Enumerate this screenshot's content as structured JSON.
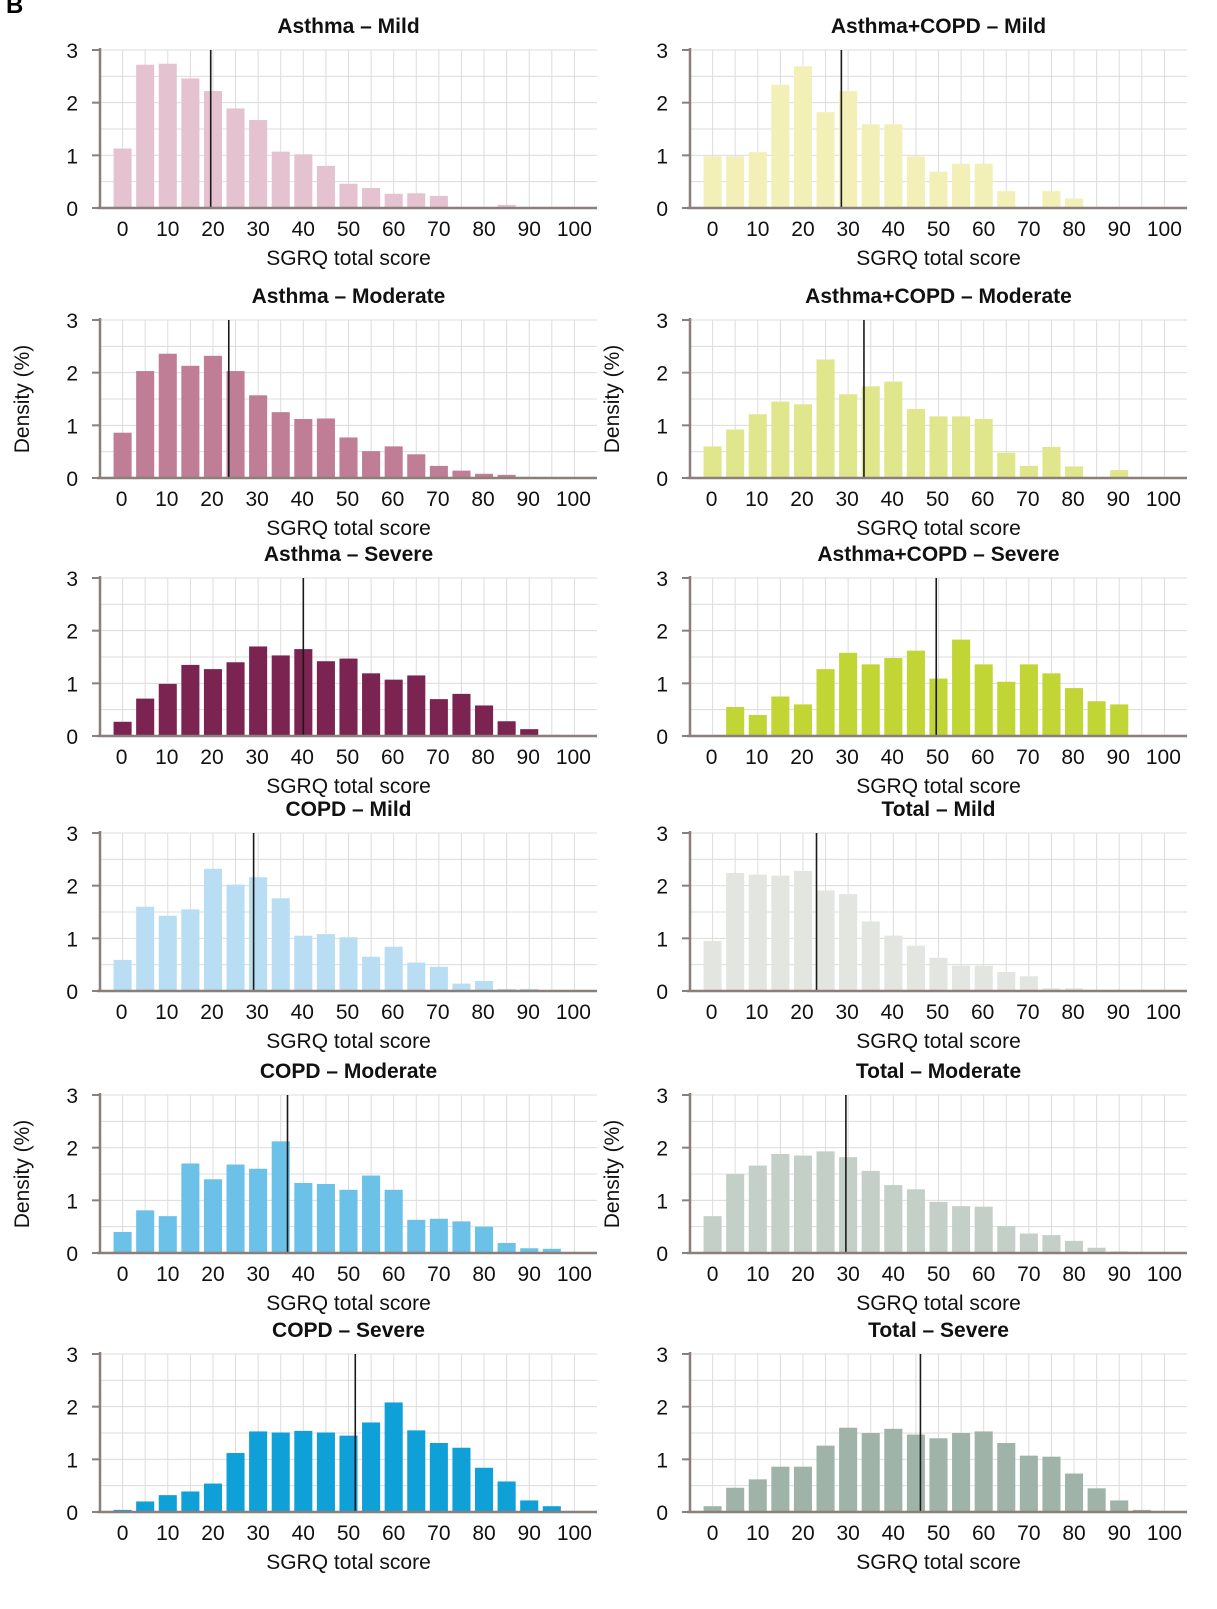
{
  "panel_label": "B",
  "chart_data": [
    {
      "type": "bar",
      "title": "Asthma – Mild",
      "xlabel": "SGRQ total score",
      "ylabel": "",
      "ylim": [
        0,
        3
      ],
      "xlim": [
        -5,
        105
      ],
      "xticks": [
        0,
        10,
        20,
        30,
        40,
        50,
        60,
        70,
        80,
        90,
        100
      ],
      "yticks": [
        0,
        1,
        2,
        3
      ],
      "grid": true,
      "bar_width": 4,
      "median": 19.5,
      "color": "#e5c2d0",
      "x": [
        0,
        5,
        10,
        15,
        20,
        25,
        30,
        35,
        40,
        45,
        50,
        55,
        60,
        65,
        70,
        75,
        80,
        85,
        90,
        95,
        100
      ],
      "values": [
        1.13,
        2.72,
        2.74,
        2.46,
        2.22,
        1.89,
        1.67,
        1.07,
        1.02,
        0.8,
        0.46,
        0.38,
        0.27,
        0.28,
        0.23,
        0.02,
        0.02,
        0.06,
        0.02,
        0,
        0
      ]
    },
    {
      "type": "bar",
      "title": "Asthma+COPD – Mild",
      "xlabel": "SGRQ total score",
      "ylabel": "",
      "ylim": [
        0,
        3
      ],
      "xlim": [
        -5,
        105
      ],
      "xticks": [
        0,
        10,
        20,
        30,
        40,
        50,
        60,
        70,
        80,
        90,
        100
      ],
      "yticks": [
        0,
        1,
        2,
        3
      ],
      "grid": true,
      "bar_width": 4,
      "median": 28.5,
      "color": "#f2f0b6",
      "x": [
        0,
        5,
        10,
        15,
        20,
        25,
        30,
        35,
        40,
        45,
        50,
        55,
        60,
        65,
        70,
        75,
        80,
        85,
        90,
        95,
        100
      ],
      "values": [
        0.98,
        0.98,
        1.06,
        2.34,
        2.69,
        1.82,
        2.22,
        1.59,
        1.59,
        0.98,
        0.69,
        0.84,
        0.84,
        0.32,
        0.02,
        0.32,
        0.18,
        0.02,
        0,
        0,
        0
      ]
    },
    {
      "type": "bar",
      "title": "Asthma – Moderate",
      "xlabel": "SGRQ total score",
      "ylabel": "Density (%)",
      "ylim": [
        0,
        3
      ],
      "xlim": [
        -5,
        105
      ],
      "xticks": [
        0,
        10,
        20,
        30,
        40,
        50,
        60,
        70,
        80,
        90,
        100
      ],
      "yticks": [
        0,
        1,
        2,
        3
      ],
      "grid": true,
      "bar_width": 4,
      "median": 23.5,
      "color": "#bf7d96",
      "x": [
        0,
        5,
        10,
        15,
        20,
        25,
        30,
        35,
        40,
        45,
        50,
        55,
        60,
        65,
        70,
        75,
        80,
        85,
        90,
        95,
        100
      ],
      "values": [
        0.86,
        2.03,
        2.36,
        2.13,
        2.32,
        2.03,
        1.57,
        1.25,
        1.12,
        1.13,
        0.77,
        0.51,
        0.6,
        0.45,
        0.23,
        0.14,
        0.08,
        0.06,
        0.02,
        0,
        0
      ]
    },
    {
      "type": "bar",
      "title": "Asthma+COPD – Moderate",
      "xlabel": "SGRQ total score",
      "ylabel": "Density (%)",
      "ylim": [
        0,
        3
      ],
      "xlim": [
        -5,
        105
      ],
      "xticks": [
        0,
        10,
        20,
        30,
        40,
        50,
        60,
        70,
        80,
        90,
        100
      ],
      "yticks": [
        0,
        1,
        2,
        3
      ],
      "grid": true,
      "bar_width": 4,
      "median": 33.5,
      "color": "#dfe68c",
      "x": [
        0,
        5,
        10,
        15,
        20,
        25,
        30,
        35,
        40,
        45,
        50,
        55,
        60,
        65,
        70,
        75,
        80,
        85,
        90,
        95,
        100
      ],
      "values": [
        0.6,
        0.92,
        1.21,
        1.45,
        1.4,
        2.25,
        1.59,
        1.74,
        1.83,
        1.31,
        1.17,
        1.17,
        1.12,
        0.48,
        0.23,
        0.59,
        0.22,
        0.02,
        0.15,
        0,
        0
      ]
    },
    {
      "type": "bar",
      "title": "Asthma – Severe",
      "xlabel": "SGRQ total score",
      "ylabel": "",
      "ylim": [
        0,
        3
      ],
      "xlim": [
        -5,
        105
      ],
      "xticks": [
        0,
        10,
        20,
        30,
        40,
        50,
        60,
        70,
        80,
        90,
        100
      ],
      "yticks": [
        0,
        1,
        2,
        3
      ],
      "grid": true,
      "bar_width": 4,
      "median": 40,
      "color": "#7b2452",
      "x": [
        0,
        5,
        10,
        15,
        20,
        25,
        30,
        35,
        40,
        45,
        50,
        55,
        60,
        65,
        70,
        75,
        80,
        85,
        90,
        95,
        100
      ],
      "values": [
        0.27,
        0.71,
        0.99,
        1.35,
        1.27,
        1.4,
        1.7,
        1.53,
        1.65,
        1.42,
        1.47,
        1.19,
        1.07,
        1.15,
        0.7,
        0.8,
        0.58,
        0.28,
        0.13,
        0.02,
        0
      ]
    },
    {
      "type": "bar",
      "title": "Asthma+COPD – Severe",
      "xlabel": "SGRQ total score",
      "ylabel": "",
      "ylim": [
        0,
        3
      ],
      "xlim": [
        -5,
        105
      ],
      "xticks": [
        0,
        10,
        20,
        30,
        40,
        50,
        60,
        70,
        80,
        90,
        100
      ],
      "yticks": [
        0,
        1,
        2,
        3
      ],
      "grid": true,
      "bar_width": 4,
      "median": 49.5,
      "color": "#c1d535",
      "x": [
        0,
        5,
        10,
        15,
        20,
        25,
        30,
        35,
        40,
        45,
        50,
        55,
        60,
        65,
        70,
        75,
        80,
        85,
        90,
        95,
        100
      ],
      "values": [
        0,
        0.55,
        0.4,
        0.75,
        0.6,
        1.27,
        1.58,
        1.36,
        1.48,
        1.62,
        1.09,
        1.83,
        1.36,
        1.03,
        1.36,
        1.19,
        0.91,
        0.66,
        0.6,
        0,
        0
      ]
    },
    {
      "type": "bar",
      "title": "COPD – Mild",
      "xlabel": "SGRQ total score",
      "ylabel": "",
      "ylim": [
        0,
        3
      ],
      "xlim": [
        -5,
        105
      ],
      "xticks": [
        0,
        10,
        20,
        30,
        40,
        50,
        60,
        70,
        80,
        90,
        100
      ],
      "yticks": [
        0,
        1,
        2,
        3
      ],
      "grid": true,
      "bar_width": 4,
      "median": 29,
      "color": "#b9ddf2",
      "x": [
        0,
        5,
        10,
        15,
        20,
        25,
        30,
        35,
        40,
        45,
        50,
        55,
        60,
        65,
        70,
        75,
        80,
        85,
        90,
        95,
        100
      ],
      "values": [
        0.59,
        1.6,
        1.43,
        1.55,
        2.32,
        2.02,
        2.16,
        1.76,
        1.05,
        1.08,
        1.02,
        0.65,
        0.84,
        0.54,
        0.46,
        0.14,
        0.19,
        0.04,
        0.04,
        0,
        0
      ]
    },
    {
      "type": "bar",
      "title": "Total – Mild",
      "xlabel": "SGRQ total score",
      "ylabel": "",
      "ylim": [
        0,
        3
      ],
      "xlim": [
        -5,
        105
      ],
      "xticks": [
        0,
        10,
        20,
        30,
        40,
        50,
        60,
        70,
        80,
        90,
        100
      ],
      "yticks": [
        0,
        1,
        2,
        3
      ],
      "grid": true,
      "bar_width": 4,
      "median": 23,
      "color": "#e2e5e0",
      "x": [
        0,
        5,
        10,
        15,
        20,
        25,
        30,
        35,
        40,
        45,
        50,
        55,
        60,
        65,
        70,
        75,
        80,
        85,
        90,
        95,
        100
      ],
      "values": [
        0.95,
        2.24,
        2.21,
        2.19,
        2.28,
        1.91,
        1.84,
        1.32,
        1.05,
        0.86,
        0.63,
        0.48,
        0.48,
        0.36,
        0.28,
        0.05,
        0.05,
        0.02,
        0.01,
        0,
        0
      ]
    },
    {
      "type": "bar",
      "title": "COPD – Moderate",
      "xlabel": "SGRQ total score",
      "ylabel": "Density (%)",
      "ylim": [
        0,
        3
      ],
      "xlim": [
        -5,
        105
      ],
      "xticks": [
        0,
        10,
        20,
        30,
        40,
        50,
        60,
        70,
        80,
        90,
        100
      ],
      "yticks": [
        0,
        1,
        2,
        3
      ],
      "grid": true,
      "bar_width": 4,
      "median": 36.5,
      "color": "#6cc1e8",
      "x": [
        0,
        5,
        10,
        15,
        20,
        25,
        30,
        35,
        40,
        45,
        50,
        55,
        60,
        65,
        70,
        75,
        80,
        85,
        90,
        95,
        100
      ],
      "values": [
        0.4,
        0.81,
        0.7,
        1.7,
        1.4,
        1.68,
        1.6,
        2.12,
        1.33,
        1.31,
        1.2,
        1.47,
        1.2,
        0.63,
        0.65,
        0.6,
        0.5,
        0.19,
        0.09,
        0.08,
        0
      ]
    },
    {
      "type": "bar",
      "title": "Total – Moderate",
      "xlabel": "SGRQ total score",
      "ylabel": "Density (%)",
      "ylim": [
        0,
        3
      ],
      "xlim": [
        -5,
        105
      ],
      "xticks": [
        0,
        10,
        20,
        30,
        40,
        50,
        60,
        70,
        80,
        90,
        100
      ],
      "yticks": [
        0,
        1,
        2,
        3
      ],
      "grid": true,
      "bar_width": 4,
      "median": 29.5,
      "color": "#c4cfc8",
      "x": [
        0,
        5,
        10,
        15,
        20,
        25,
        30,
        35,
        40,
        45,
        50,
        55,
        60,
        65,
        70,
        75,
        80,
        85,
        90,
        95,
        100
      ],
      "values": [
        0.7,
        1.5,
        1.66,
        1.88,
        1.85,
        1.93,
        1.82,
        1.56,
        1.29,
        1.21,
        0.97,
        0.89,
        0.88,
        0.51,
        0.37,
        0.34,
        0.23,
        0.1,
        0.03,
        0,
        0
      ]
    },
    {
      "type": "bar",
      "title": "COPD – Severe",
      "xlabel": "SGRQ total score",
      "ylabel": "",
      "ylim": [
        0,
        3
      ],
      "xlim": [
        -5,
        105
      ],
      "xticks": [
        0,
        10,
        20,
        30,
        40,
        50,
        60,
        70,
        80,
        90,
        100
      ],
      "yticks": [
        0,
        1,
        2,
        3
      ],
      "grid": true,
      "bar_width": 4,
      "median": 51.5,
      "color": "#10a0d8",
      "x": [
        0,
        5,
        10,
        15,
        20,
        25,
        30,
        35,
        40,
        45,
        50,
        55,
        60,
        65,
        70,
        75,
        80,
        85,
        90,
        95,
        100
      ],
      "values": [
        0.04,
        0.2,
        0.32,
        0.39,
        0.54,
        1.12,
        1.53,
        1.51,
        1.54,
        1.51,
        1.45,
        1.7,
        2.08,
        1.55,
        1.31,
        1.22,
        0.84,
        0.58,
        0.22,
        0.11,
        0
      ]
    },
    {
      "type": "bar",
      "title": "Total – Severe",
      "xlabel": "SGRQ total score",
      "ylabel": "",
      "ylim": [
        0,
        3
      ],
      "xlim": [
        -5,
        105
      ],
      "xticks": [
        0,
        10,
        20,
        30,
        40,
        50,
        60,
        70,
        80,
        90,
        100
      ],
      "yticks": [
        0,
        1,
        2,
        3
      ],
      "grid": true,
      "bar_width": 4,
      "median": 46,
      "color": "#9fb3a8",
      "x": [
        0,
        5,
        10,
        15,
        20,
        25,
        30,
        35,
        40,
        45,
        50,
        55,
        60,
        65,
        70,
        75,
        80,
        85,
        90,
        95,
        100
      ],
      "values": [
        0.11,
        0.46,
        0.62,
        0.86,
        0.86,
        1.26,
        1.6,
        1.5,
        1.58,
        1.47,
        1.4,
        1.5,
        1.53,
        1.31,
        1.07,
        1.05,
        0.73,
        0.45,
        0.22,
        0.04,
        0
      ]
    }
  ]
}
